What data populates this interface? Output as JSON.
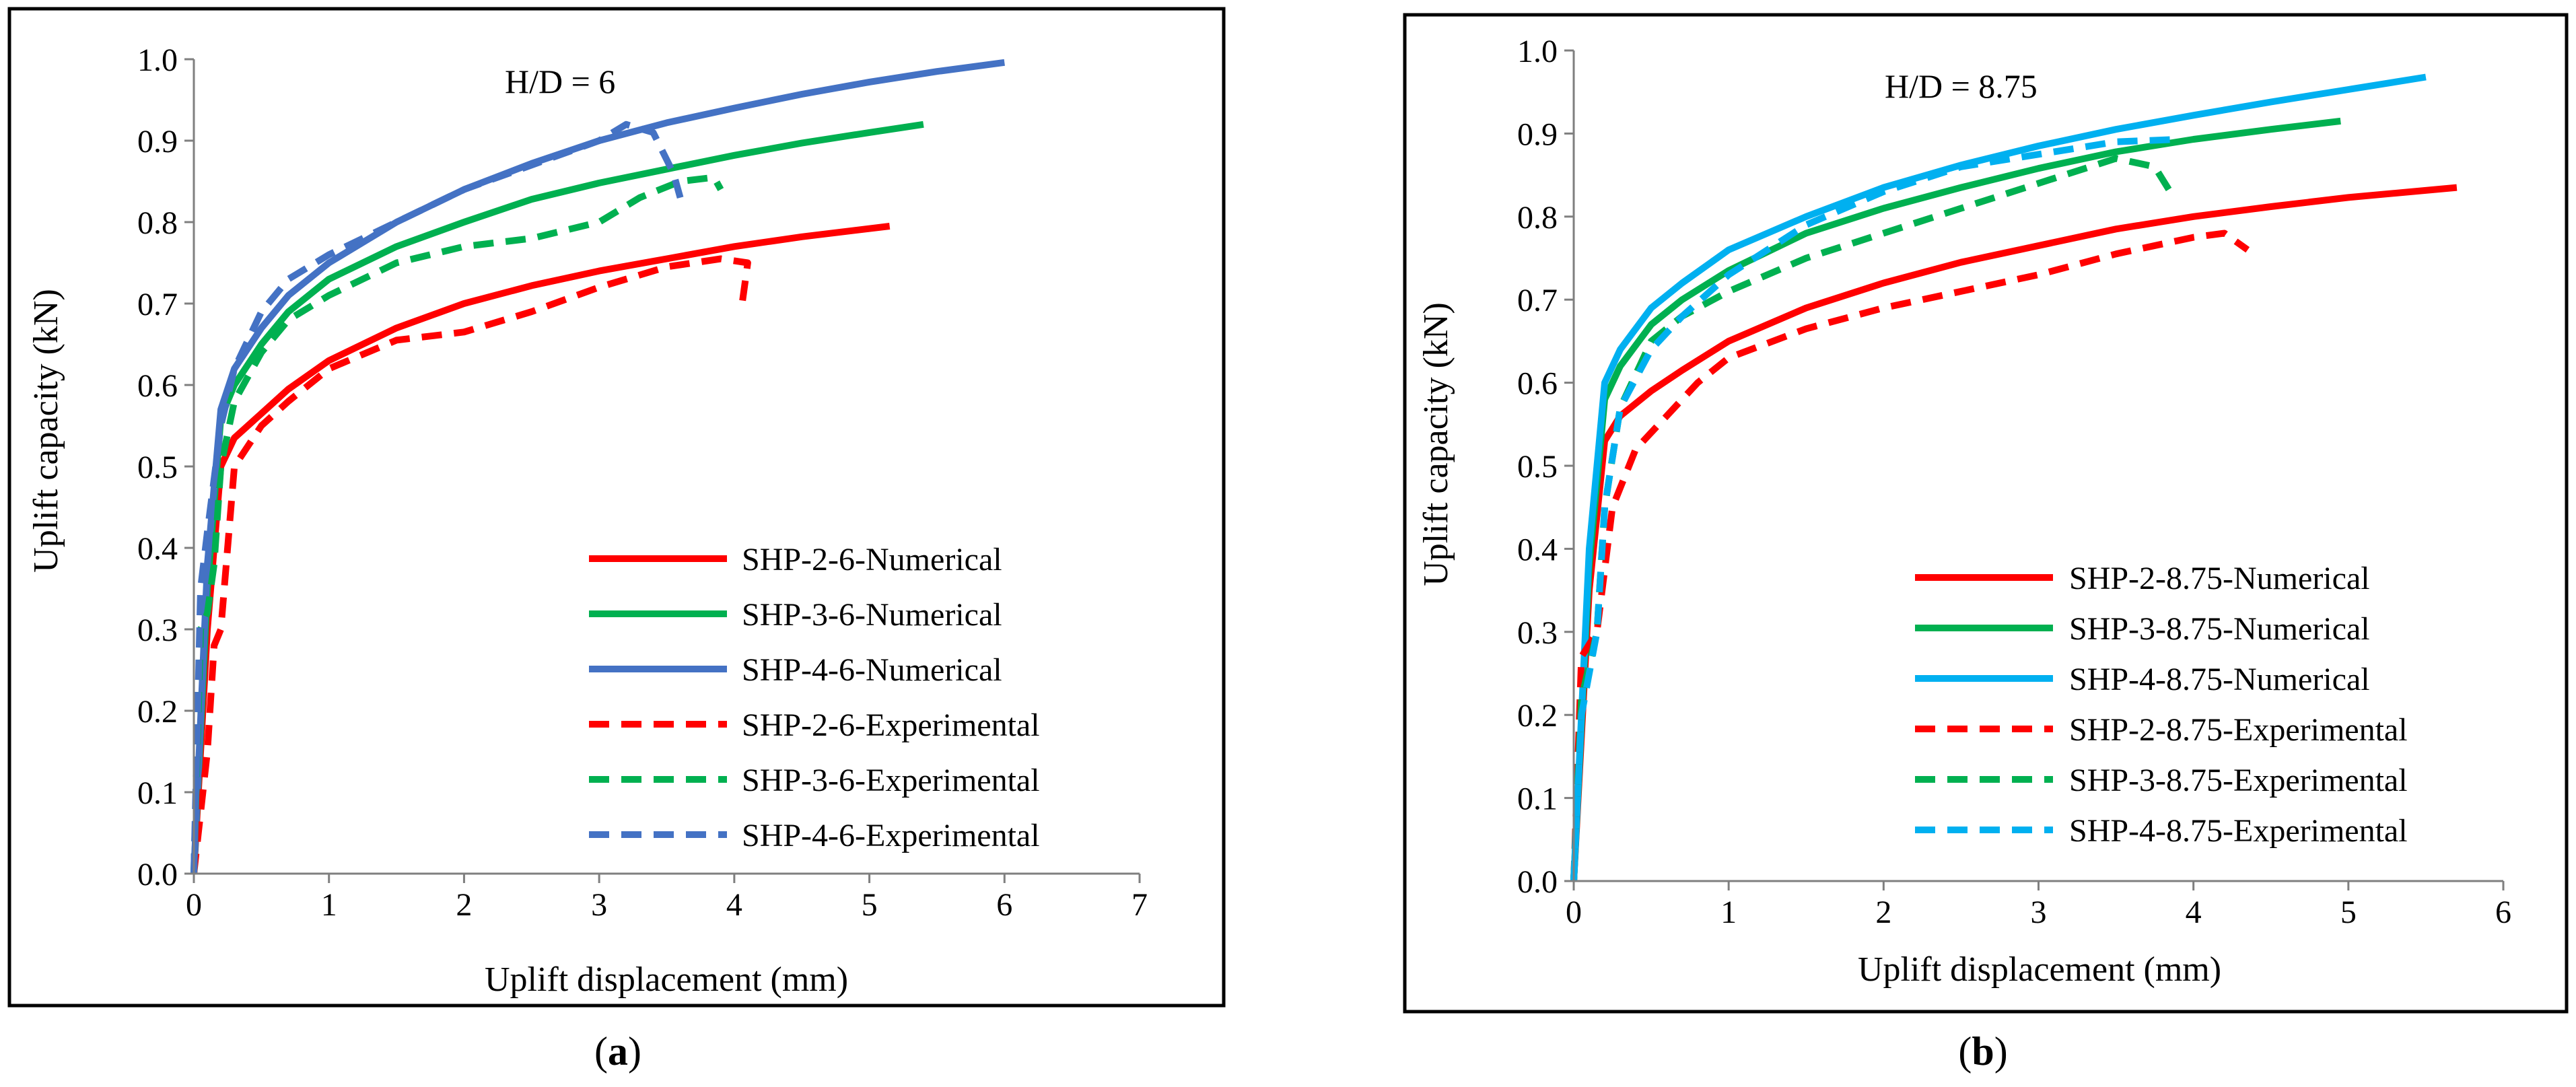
{
  "colors": {
    "red": "#ff0000",
    "green": "#00b050",
    "darkblue": "#4472c4",
    "lightblue": "#00b0f0",
    "axis": "#7f7f7f",
    "frame": "#000000"
  },
  "chart_data": [
    {
      "type": "line",
      "panel_label": "a",
      "annotation": "H/D = 6",
      "xlabel": "Uplift displacement (mm)",
      "ylabel": "Uplift capacity (kN)",
      "xlim": [
        0,
        7
      ],
      "ylim": [
        0,
        1.0
      ],
      "xticks": [
        0,
        1,
        2,
        3,
        4,
        5,
        6,
        7
      ],
      "yticks": [
        0.0,
        0.1,
        0.2,
        0.3,
        0.4,
        0.5,
        0.6,
        0.7,
        0.8,
        0.9,
        1.0
      ],
      "xtick_labels": [
        "0",
        "1",
        "2",
        "3",
        "4",
        "5",
        "6",
        "7"
      ],
      "ytick_labels": [
        "0.0",
        "0.1",
        "0.2",
        "0.3",
        "0.4",
        "0.5",
        "0.6",
        "0.7",
        "0.8",
        "0.9",
        "1.0"
      ],
      "grid": false,
      "legend_position": "lower-right",
      "series": [
        {
          "name": "SHP-2-6-Numerical",
          "color": "red",
          "dash": "solid",
          "x": [
            0,
            0.1,
            0.2,
            0.3,
            0.5,
            0.7,
            1.0,
            1.5,
            2.0,
            2.5,
            3.0,
            3.5,
            4.0,
            4.5,
            5.15
          ],
          "y": [
            0,
            0.3,
            0.5,
            0.535,
            0.565,
            0.595,
            0.63,
            0.67,
            0.7,
            0.722,
            0.74,
            0.755,
            0.77,
            0.782,
            0.795
          ]
        },
        {
          "name": "SHP-3-6-Numerical",
          "color": "green",
          "dash": "solid",
          "x": [
            0,
            0.1,
            0.2,
            0.3,
            0.5,
            0.7,
            1.0,
            1.5,
            2.0,
            2.5,
            3.0,
            3.5,
            4.0,
            4.5,
            5.0,
            5.4
          ],
          "y": [
            0,
            0.35,
            0.56,
            0.6,
            0.65,
            0.69,
            0.73,
            0.77,
            0.8,
            0.828,
            0.848,
            0.865,
            0.882,
            0.897,
            0.91,
            0.92
          ]
        },
        {
          "name": "SHP-4-6-Numerical",
          "color": "darkblue",
          "dash": "solid",
          "x": [
            0,
            0.1,
            0.2,
            0.3,
            0.5,
            0.7,
            1.0,
            1.5,
            2.0,
            2.5,
            3.0,
            3.5,
            4.0,
            4.5,
            5.0,
            5.5,
            6.0
          ],
          "y": [
            0,
            0.38,
            0.57,
            0.62,
            0.67,
            0.71,
            0.75,
            0.8,
            0.84,
            0.872,
            0.9,
            0.922,
            0.94,
            0.957,
            0.972,
            0.985,
            0.996
          ]
        },
        {
          "name": "SHP-2-6-Experimental",
          "color": "red",
          "dash": "dashed",
          "x": [
            0,
            0.1,
            0.15,
            0.2,
            0.3,
            0.5,
            0.7,
            1.0,
            1.5,
            2.0,
            2.5,
            3.0,
            3.5,
            3.9,
            4.1,
            4.05
          ],
          "y": [
            0,
            0.15,
            0.28,
            0.3,
            0.5,
            0.55,
            0.58,
            0.62,
            0.655,
            0.665,
            0.69,
            0.72,
            0.745,
            0.755,
            0.75,
            0.69
          ]
        },
        {
          "name": "SHP-3-6-Experimental",
          "color": "green",
          "dash": "dashed",
          "x": [
            0,
            0.05,
            0.1,
            0.15,
            0.2,
            0.3,
            0.5,
            0.7,
            1.0,
            1.5,
            2.0,
            2.5,
            3.0,
            3.3,
            3.6,
            3.85,
            3.9
          ],
          "y": [
            0,
            0.3,
            0.32,
            0.38,
            0.5,
            0.58,
            0.64,
            0.68,
            0.71,
            0.75,
            0.77,
            0.78,
            0.8,
            0.83,
            0.85,
            0.855,
            0.84
          ]
        },
        {
          "name": "SHP-4-6-Experimental",
          "color": "darkblue",
          "dash": "dashed",
          "x": [
            0,
            0.05,
            0.1,
            0.2,
            0.3,
            0.5,
            0.7,
            1.0,
            1.5,
            2.0,
            2.5,
            3.0,
            3.2,
            3.4,
            3.55,
            3.6
          ],
          "y": [
            0,
            0.35,
            0.42,
            0.55,
            0.62,
            0.69,
            0.73,
            0.76,
            0.8,
            0.84,
            0.87,
            0.9,
            0.92,
            0.91,
            0.86,
            0.83
          ]
        }
      ]
    },
    {
      "type": "line",
      "panel_label": "b",
      "annotation": "H/D = 8.75",
      "xlabel": "Uplift displacement (mm)",
      "ylabel": "Uplift capacity (kN)",
      "xlim": [
        0,
        6
      ],
      "ylim": [
        0,
        1.0
      ],
      "xticks": [
        0,
        1,
        2,
        3,
        4,
        5,
        6
      ],
      "yticks": [
        0.0,
        0.1,
        0.2,
        0.3,
        0.4,
        0.5,
        0.6,
        0.7,
        0.8,
        0.9,
        1.0
      ],
      "xtick_labels": [
        "0",
        "1",
        "2",
        "3",
        "4",
        "5",
        "6"
      ],
      "ytick_labels": [
        "0.0",
        "0.1",
        "0.2",
        "0.3",
        "0.4",
        "0.5",
        "0.6",
        "0.7",
        "0.8",
        "0.9",
        "1.0"
      ],
      "grid": false,
      "legend_position": "lower-right",
      "series": [
        {
          "name": "SHP-2-8.75-Numerical",
          "color": "red",
          "dash": "solid",
          "x": [
            0,
            0.1,
            0.2,
            0.3,
            0.5,
            0.7,
            1.0,
            1.5,
            2.0,
            2.5,
            3.0,
            3.5,
            4.0,
            4.5,
            5.0,
            5.7
          ],
          "y": [
            0,
            0.35,
            0.53,
            0.56,
            0.59,
            0.615,
            0.65,
            0.69,
            0.72,
            0.745,
            0.765,
            0.785,
            0.8,
            0.812,
            0.823,
            0.835
          ]
        },
        {
          "name": "SHP-3-8.75-Numerical",
          "color": "green",
          "dash": "solid",
          "x": [
            0,
            0.1,
            0.2,
            0.3,
            0.5,
            0.7,
            1.0,
            1.5,
            2.0,
            2.5,
            3.0,
            3.5,
            4.0,
            4.5,
            4.95
          ],
          "y": [
            0,
            0.38,
            0.58,
            0.62,
            0.67,
            0.7,
            0.735,
            0.78,
            0.81,
            0.835,
            0.858,
            0.878,
            0.893,
            0.905,
            0.915
          ]
        },
        {
          "name": "SHP-4-8.75-Numerical",
          "color": "lightblue",
          "dash": "solid",
          "x": [
            0,
            0.1,
            0.2,
            0.3,
            0.5,
            0.7,
            1.0,
            1.5,
            2.0,
            2.5,
            3.0,
            3.5,
            4.0,
            4.5,
            5.0,
            5.5
          ],
          "y": [
            0,
            0.4,
            0.6,
            0.64,
            0.69,
            0.72,
            0.76,
            0.8,
            0.835,
            0.862,
            0.885,
            0.905,
            0.922,
            0.938,
            0.953,
            0.968
          ]
        },
        {
          "name": "SHP-2-8.75-Experimental",
          "color": "red",
          "dash": "dashed",
          "x": [
            0,
            0.05,
            0.15,
            0.25,
            0.4,
            0.6,
            0.8,
            1.0,
            1.5,
            2.0,
            2.5,
            3.0,
            3.5,
            4.0,
            4.2,
            4.35
          ],
          "y": [
            0,
            0.27,
            0.3,
            0.45,
            0.52,
            0.56,
            0.6,
            0.63,
            0.665,
            0.69,
            0.71,
            0.73,
            0.755,
            0.775,
            0.78,
            0.76
          ]
        },
        {
          "name": "SHP-3-8.75-Experimental",
          "color": "green",
          "dash": "dashed",
          "x": [
            0,
            0.05,
            0.15,
            0.2,
            0.3,
            0.5,
            0.7,
            1.0,
            1.5,
            2.0,
            2.5,
            3.0,
            3.5,
            3.75,
            3.85
          ],
          "y": [
            0,
            0.22,
            0.3,
            0.45,
            0.57,
            0.65,
            0.68,
            0.71,
            0.75,
            0.78,
            0.81,
            0.84,
            0.87,
            0.86,
            0.83
          ]
        },
        {
          "name": "SHP-4-8.75-Experimental",
          "color": "lightblue",
          "dash": "dashed",
          "x": [
            0,
            0.05,
            0.15,
            0.2,
            0.3,
            0.5,
            0.7,
            1.0,
            1.5,
            2.0,
            2.5,
            3.0,
            3.5,
            3.9
          ],
          "y": [
            0,
            0.2,
            0.3,
            0.45,
            0.57,
            0.64,
            0.68,
            0.73,
            0.79,
            0.83,
            0.86,
            0.875,
            0.89,
            0.893
          ]
        }
      ]
    }
  ]
}
